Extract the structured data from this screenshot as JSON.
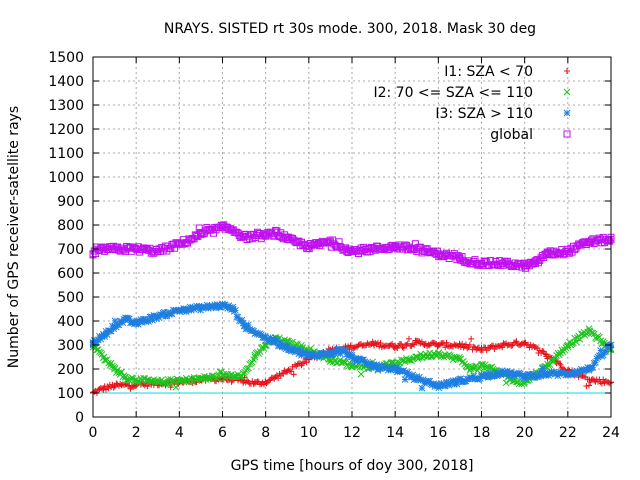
{
  "chart_data": {
    "type": "scatter",
    "title": "NRAYS. SISTED rt 30s mode. 300, 2018. Mask 30 deg",
    "xlabel": "GPS time [hours of doy 300, 2018]",
    "ylabel": "Number of GPS receiver-satellite rays",
    "xlim": [
      0,
      24
    ],
    "ylim": [
      0,
      1500
    ],
    "xticks": [
      "0",
      "2",
      "4",
      "6",
      "8",
      "10",
      "12",
      "14",
      "16",
      "18",
      "20",
      "22",
      "24"
    ],
    "yticks": [
      "0",
      "100",
      "200",
      "300",
      "400",
      "500",
      "600",
      "700",
      "800",
      "900",
      "1000",
      "1100",
      "1200",
      "1300",
      "1400",
      "1500"
    ],
    "grid": true,
    "legend_position": "top-right",
    "reference_line": {
      "y": 100,
      "color": "#00e0e0"
    },
    "series": [
      {
        "name": "I1: SZA < 70",
        "color": "#e8101a",
        "marker": "plus",
        "x": [
          0,
          0.5,
          1,
          2,
          3,
          4,
          5,
          6,
          7,
          7.5,
          8,
          9,
          10,
          11,
          12,
          13,
          14,
          15,
          16,
          17,
          18,
          19,
          20,
          21,
          22,
          23,
          24
        ],
        "y": [
          100,
          120,
          130,
          135,
          140,
          145,
          155,
          160,
          150,
          140,
          145,
          190,
          240,
          280,
          290,
          305,
          295,
          310,
          300,
          300,
          280,
          300,
          310,
          260,
          195,
          155,
          145
        ]
      },
      {
        "name": "I2: 70 <= SZA <= 110",
        "color": "#1ec41e",
        "marker": "cross",
        "x": [
          0,
          0.5,
          1,
          1.5,
          2,
          3,
          4,
          5,
          6,
          7,
          7.5,
          8,
          8.5,
          9,
          10,
          11,
          12,
          13,
          14,
          15,
          16,
          17,
          17.5,
          18,
          19,
          19.5,
          20,
          21,
          22,
          23,
          24
        ],
        "y": [
          300,
          250,
          200,
          165,
          155,
          145,
          150,
          160,
          170,
          180,
          250,
          300,
          325,
          310,
          280,
          240,
          215,
          210,
          220,
          250,
          265,
          240,
          200,
          215,
          180,
          150,
          145,
          210,
          300,
          360,
          280
        ]
      },
      {
        "name": "I3: SZA > 110",
        "color": "#1e7fe0",
        "marker": "star",
        "x": [
          0,
          0.5,
          1,
          1.5,
          2,
          3,
          4,
          5,
          6,
          6.5,
          7,
          8,
          9,
          10,
          11,
          11.5,
          12,
          13,
          14,
          15,
          16,
          17,
          18,
          19,
          20,
          21,
          22,
          23,
          24
        ],
        "y": [
          310,
          340,
          380,
          405,
          390,
          420,
          445,
          455,
          465,
          450,
          380,
          330,
          290,
          255,
          265,
          280,
          250,
          210,
          200,
          160,
          130,
          150,
          170,
          185,
          170,
          180,
          180,
          200,
          300
        ]
      },
      {
        "name": "global",
        "color": "#c010f0",
        "marker": "square",
        "x": [
          0,
          0.5,
          1,
          2,
          3,
          4,
          5,
          6,
          6.5,
          7,
          8,
          8.5,
          9,
          10,
          11,
          12,
          13,
          14,
          15,
          16,
          17,
          18,
          19,
          20,
          20.5,
          21,
          22,
          23,
          24
        ],
        "y": [
          680,
          700,
          700,
          700,
          690,
          720,
          760,
          790,
          780,
          750,
          755,
          770,
          740,
          710,
          730,
          690,
          700,
          710,
          700,
          680,
          660,
          640,
          640,
          630,
          640,
          680,
          690,
          730,
          740
        ]
      }
    ]
  }
}
